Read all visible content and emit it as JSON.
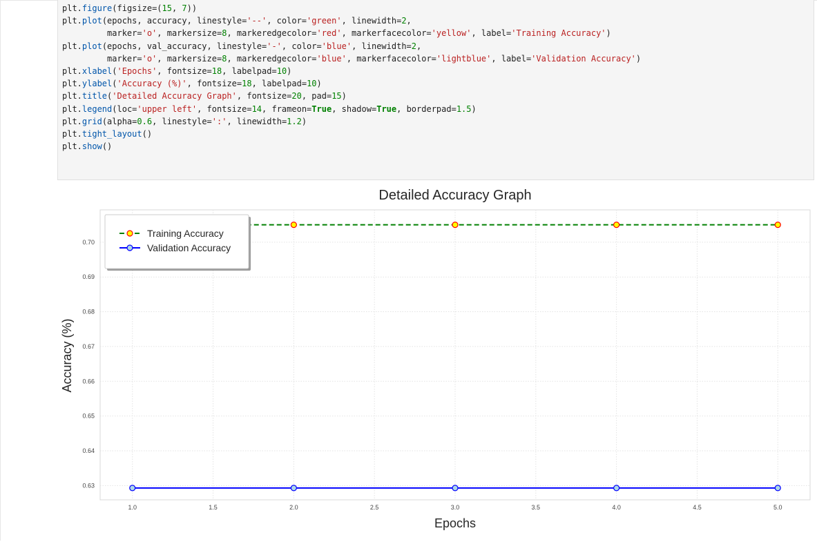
{
  "code_cell": {
    "lines": [
      [
        {
          "t": "plt.",
          "c": ""
        },
        {
          "t": "figure",
          "c": "fn"
        },
        {
          "t": "(figsize=(",
          "c": ""
        },
        {
          "t": "15",
          "c": "num"
        },
        {
          "t": ", ",
          "c": ""
        },
        {
          "t": "7",
          "c": "num"
        },
        {
          "t": "))",
          "c": ""
        }
      ],
      [
        {
          "t": "plt.",
          "c": ""
        },
        {
          "t": "plot",
          "c": "fn"
        },
        {
          "t": "(epochs, accuracy, linestyle=",
          "c": ""
        },
        {
          "t": "'--'",
          "c": "str"
        },
        {
          "t": ", color=",
          "c": ""
        },
        {
          "t": "'green'",
          "c": "str"
        },
        {
          "t": ", linewidth=",
          "c": ""
        },
        {
          "t": "2",
          "c": "num"
        },
        {
          "t": ",",
          "c": ""
        }
      ],
      [
        {
          "t": "         marker=",
          "c": ""
        },
        {
          "t": "'o'",
          "c": "str"
        },
        {
          "t": ", markersize=",
          "c": ""
        },
        {
          "t": "8",
          "c": "num"
        },
        {
          "t": ", markeredgecolor=",
          "c": ""
        },
        {
          "t": "'red'",
          "c": "str"
        },
        {
          "t": ", markerfacecolor=",
          "c": ""
        },
        {
          "t": "'yellow'",
          "c": "str"
        },
        {
          "t": ", label=",
          "c": ""
        },
        {
          "t": "'Training Accuracy'",
          "c": "str"
        },
        {
          "t": ")",
          "c": ""
        }
      ],
      [
        {
          "t": "plt.",
          "c": ""
        },
        {
          "t": "plot",
          "c": "fn"
        },
        {
          "t": "(epochs, val_accuracy, linestyle=",
          "c": ""
        },
        {
          "t": "'-'",
          "c": "str"
        },
        {
          "t": ", color=",
          "c": ""
        },
        {
          "t": "'blue'",
          "c": "str"
        },
        {
          "t": ", linewidth=",
          "c": ""
        },
        {
          "t": "2",
          "c": "num"
        },
        {
          "t": ",",
          "c": ""
        }
      ],
      [
        {
          "t": "         marker=",
          "c": ""
        },
        {
          "t": "'o'",
          "c": "str"
        },
        {
          "t": ", markersize=",
          "c": ""
        },
        {
          "t": "8",
          "c": "num"
        },
        {
          "t": ", markeredgecolor=",
          "c": ""
        },
        {
          "t": "'blue'",
          "c": "str"
        },
        {
          "t": ", markerfacecolor=",
          "c": ""
        },
        {
          "t": "'lightblue'",
          "c": "str"
        },
        {
          "t": ", label=",
          "c": ""
        },
        {
          "t": "'Validation Accuracy'",
          "c": "str"
        },
        {
          "t": ")",
          "c": ""
        }
      ],
      [
        {
          "t": "plt.",
          "c": ""
        },
        {
          "t": "xlabel",
          "c": "fn"
        },
        {
          "t": "(",
          "c": ""
        },
        {
          "t": "'Epochs'",
          "c": "str"
        },
        {
          "t": ", fontsize=",
          "c": ""
        },
        {
          "t": "18",
          "c": "num"
        },
        {
          "t": ", labelpad=",
          "c": ""
        },
        {
          "t": "10",
          "c": "num"
        },
        {
          "t": ")",
          "c": ""
        }
      ],
      [
        {
          "t": "plt.",
          "c": ""
        },
        {
          "t": "ylabel",
          "c": "fn"
        },
        {
          "t": "(",
          "c": ""
        },
        {
          "t": "'Accuracy (%)'",
          "c": "str"
        },
        {
          "t": ", fontsize=",
          "c": ""
        },
        {
          "t": "18",
          "c": "num"
        },
        {
          "t": ", labelpad=",
          "c": ""
        },
        {
          "t": "10",
          "c": "num"
        },
        {
          "t": ")",
          "c": ""
        }
      ],
      [
        {
          "t": "plt.",
          "c": ""
        },
        {
          "t": "title",
          "c": "fn"
        },
        {
          "t": "(",
          "c": ""
        },
        {
          "t": "'Detailed Accuracy Graph'",
          "c": "str"
        },
        {
          "t": ", fontsize=",
          "c": ""
        },
        {
          "t": "20",
          "c": "num"
        },
        {
          "t": ", pad=",
          "c": ""
        },
        {
          "t": "15",
          "c": "num"
        },
        {
          "t": ")",
          "c": ""
        }
      ],
      [
        {
          "t": "plt.",
          "c": ""
        },
        {
          "t": "legend",
          "c": "fn"
        },
        {
          "t": "(loc=",
          "c": ""
        },
        {
          "t": "'upper left'",
          "c": "str"
        },
        {
          "t": ", fontsize=",
          "c": ""
        },
        {
          "t": "14",
          "c": "num"
        },
        {
          "t": ", frameon=",
          "c": ""
        },
        {
          "t": "True",
          "c": "kw"
        },
        {
          "t": ", shadow=",
          "c": ""
        },
        {
          "t": "True",
          "c": "kw"
        },
        {
          "t": ", borderpad=",
          "c": ""
        },
        {
          "t": "1.5",
          "c": "num"
        },
        {
          "t": ")",
          "c": ""
        }
      ],
      [
        {
          "t": "plt.",
          "c": ""
        },
        {
          "t": "grid",
          "c": "fn"
        },
        {
          "t": "(alpha=",
          "c": ""
        },
        {
          "t": "0.6",
          "c": "num"
        },
        {
          "t": ", linestyle=",
          "c": ""
        },
        {
          "t": "':'",
          "c": "str"
        },
        {
          "t": ", linewidth=",
          "c": ""
        },
        {
          "t": "1.2",
          "c": "num"
        },
        {
          "t": ")",
          "c": ""
        }
      ],
      [
        {
          "t": "plt.",
          "c": ""
        },
        {
          "t": "tight_layout",
          "c": "fn"
        },
        {
          "t": "()",
          "c": ""
        }
      ],
      [
        {
          "t": "plt.",
          "c": ""
        },
        {
          "t": "show",
          "c": "fn"
        },
        {
          "t": "()",
          "c": ""
        }
      ]
    ]
  },
  "chart_data": {
    "type": "line",
    "title": "Detailed Accuracy Graph",
    "xlabel": "Epochs",
    "ylabel": "Accuracy (%)",
    "x": [
      1,
      2,
      3,
      4,
      5
    ],
    "xlim": [
      0.8,
      5.2
    ],
    "ylim": [
      0.6259,
      0.7093
    ],
    "xticks": [
      "1.0",
      "1.5",
      "2.0",
      "2.5",
      "3.0",
      "3.5",
      "4.0",
      "4.5",
      "5.0"
    ],
    "yticks": [
      "0.63",
      "0.64",
      "0.65",
      "0.66",
      "0.67",
      "0.68",
      "0.69",
      "0.70"
    ],
    "grid": true,
    "legend_position": "upper left",
    "series": [
      {
        "name": "Training Accuracy",
        "values": [
          0.705,
          0.705,
          0.705,
          0.705,
          0.705
        ],
        "color": "#008000",
        "linestyle": "dashed",
        "marker_face": "#ffff00",
        "marker_edge": "#ff0000"
      },
      {
        "name": "Validation Accuracy",
        "values": [
          0.6293,
          0.6293,
          0.6293,
          0.6293,
          0.6293
        ],
        "color": "#0000ff",
        "linestyle": "solid",
        "marker_face": "#add8e6",
        "marker_edge": "#0000ff"
      }
    ]
  }
}
